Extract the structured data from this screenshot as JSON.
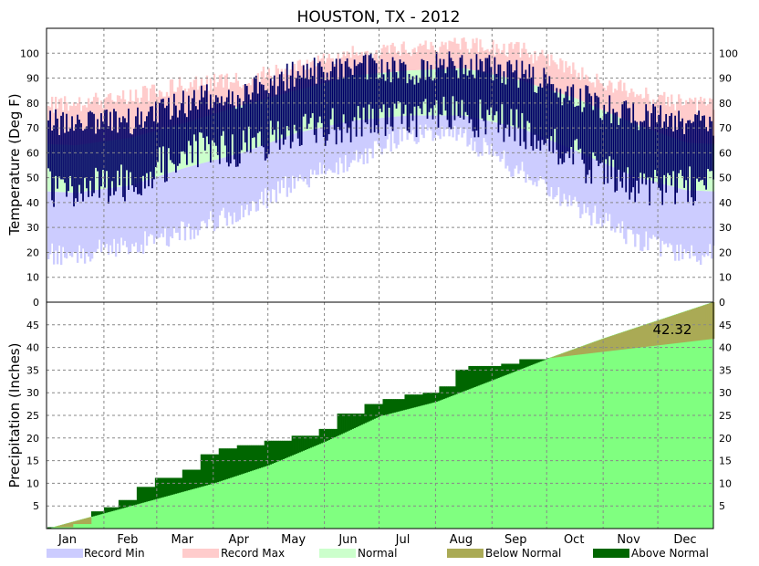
{
  "chart_data": {
    "type": "area",
    "title": "HOUSTON, TX - 2012",
    "months": [
      "Jan",
      "Feb",
      "Mar",
      "Apr",
      "May",
      "Jun",
      "Jul",
      "Aug",
      "Sep",
      "Oct",
      "Nov",
      "Dec"
    ],
    "colors": {
      "record_min": "#ccccff",
      "record_max": "#ffcccc",
      "normal": "#ccffcc",
      "actual_temp": "#000066",
      "below_normal": "#aaaa55",
      "above_normal": "#006600",
      "normal_precip": "#80ff80"
    },
    "temperature": {
      "ylabel": "Temperature (Deg F)",
      "ylim": [
        0,
        110
      ],
      "ticks": [
        10,
        20,
        30,
        40,
        50,
        60,
        70,
        80,
        90,
        100
      ],
      "grid": true,
      "monthly_normal_high": [
        63,
        66,
        72,
        79,
        85,
        91,
        93,
        94,
        89,
        82,
        72,
        64
      ],
      "monthly_normal_low": [
        44,
        47,
        54,
        60,
        68,
        73,
        75,
        75,
        70,
        61,
        51,
        45
      ],
      "monthly_record_high": [
        83,
        86,
        91,
        93,
        97,
        103,
        105,
        107,
        105,
        96,
        88,
        83
      ],
      "monthly_record_low": [
        15,
        18,
        24,
        32,
        44,
        53,
        63,
        62,
        48,
        34,
        22,
        14
      ],
      "monthly_actual_high": [
        72,
        73,
        80,
        84,
        92,
        95,
        93,
        96,
        92,
        83,
        75,
        73
      ],
      "monthly_actual_low": [
        45,
        48,
        60,
        62,
        68,
        72,
        74,
        75,
        70,
        58,
        46,
        47
      ]
    },
    "precipitation": {
      "ylabel": "Precipitation (Inches)",
      "ylim": [
        0,
        50
      ],
      "ticks": [
        5,
        10,
        15,
        20,
        25,
        30,
        35,
        40,
        45
      ],
      "left_zero_label": "0",
      "grid": true,
      "normal_cumulative": {
        "day": [
          1,
          32,
          61,
          92,
          122,
          153,
          183,
          214,
          245,
          275,
          306,
          336,
          366
        ],
        "inches": [
          0,
          3.4,
          6.6,
          10.0,
          14.0,
          19.2,
          24.8,
          28.0,
          32.8,
          37.5,
          42.0,
          46.0,
          50.0
        ]
      },
      "actual_cumulative": {
        "day": [
          1,
          15,
          25,
          32,
          40,
          50,
          60,
          75,
          85,
          95,
          105,
          120,
          135,
          150,
          160,
          175,
          185,
          197,
          207,
          216,
          225,
          232,
          250,
          260,
          275,
          366
        ],
        "inches": [
          0.3,
          1.0,
          3.8,
          4.7,
          6.3,
          9.2,
          11.2,
          13.0,
          16.4,
          17.7,
          18.4,
          19.4,
          20.5,
          22.0,
          25.4,
          27.5,
          28.6,
          29.6,
          30.0,
          31.4,
          35.1,
          35.9,
          36.4,
          37.4,
          37.6,
          41.9
        ]
      },
      "annotation": "42.32"
    },
    "legend": [
      {
        "label": "Record Min",
        "color": "#ccccff"
      },
      {
        "label": "Record Max",
        "color": "#ffcccc"
      },
      {
        "label": "Normal",
        "color": "#ccffcc"
      },
      {
        "label": "Below Normal",
        "color": "#aaaa55"
      },
      {
        "label": "Above Normal",
        "color": "#006600"
      }
    ]
  }
}
